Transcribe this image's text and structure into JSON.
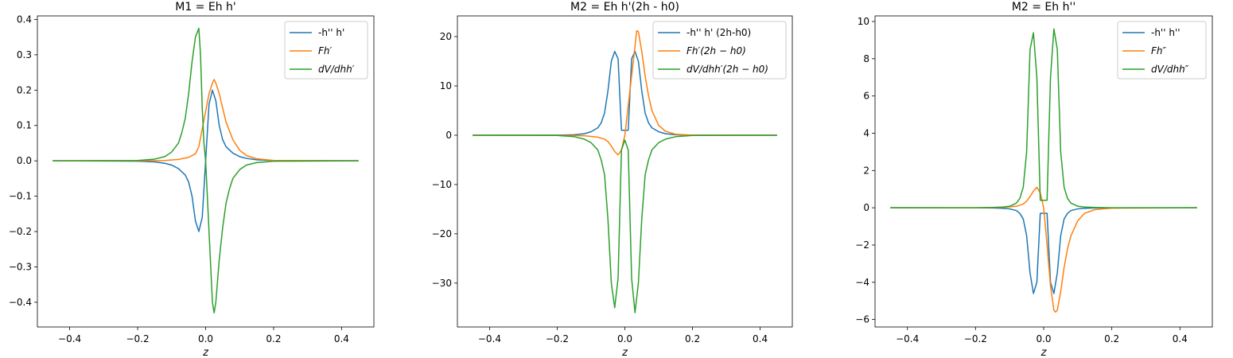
{
  "chart_data": [
    {
      "type": "line",
      "title": "M1 = Eh h'",
      "xlabel": "z",
      "ylabel": "",
      "xlim": [
        -0.495,
        0.495
      ],
      "ylim": [
        -0.47,
        0.41
      ],
      "xticks": [
        -0.4,
        -0.2,
        0.0,
        0.2,
        0.4
      ],
      "xtick_labels": [
        "−0.4",
        "−0.2",
        "0.0",
        "0.2",
        "0.4"
      ],
      "yticks": [
        -0.4,
        -0.3,
        -0.2,
        -0.1,
        0.0,
        0.1,
        0.2,
        0.3,
        0.4
      ],
      "ytick_labels": [
        "−0.4",
        "−0.3",
        "−0.2",
        "−0.1",
        "0.0",
        "0.1",
        "0.2",
        "0.3",
        "0.4"
      ],
      "grid": false,
      "legend": "top-right",
      "series": [
        {
          "name": "-h'' h'",
          "color": "#1f77b4",
          "x": [
            -0.45,
            -0.2,
            -0.15,
            -0.12,
            -0.1,
            -0.08,
            -0.06,
            -0.05,
            -0.04,
            -0.03,
            -0.02,
            -0.01,
            0.0,
            0.01,
            0.02,
            0.03,
            0.04,
            0.05,
            0.06,
            0.08,
            0.1,
            0.12,
            0.15,
            0.2,
            0.45
          ],
          "y": [
            0,
            -0.001,
            -0.003,
            -0.007,
            -0.012,
            -0.022,
            -0.04,
            -0.06,
            -0.1,
            -0.17,
            -0.2,
            -0.16,
            0.0,
            0.16,
            0.2,
            0.17,
            0.1,
            0.06,
            0.04,
            0.022,
            0.012,
            0.007,
            0.003,
            0.001,
            0
          ]
        },
        {
          "name": "Fh′",
          "color": "#ff7f0e",
          "x": [
            -0.45,
            -0.2,
            -0.12,
            -0.08,
            -0.05,
            -0.03,
            -0.02,
            -0.01,
            0.0,
            0.01,
            0.02,
            0.025,
            0.03,
            0.04,
            0.05,
            0.06,
            0.08,
            0.1,
            0.12,
            0.15,
            0.2,
            0.45
          ],
          "y": [
            0,
            0,
            0.001,
            0.004,
            0.01,
            0.02,
            0.04,
            0.09,
            0.14,
            0.19,
            0.22,
            0.23,
            0.22,
            0.19,
            0.15,
            0.11,
            0.06,
            0.03,
            0.015,
            0.006,
            0.001,
            0
          ]
        },
        {
          "name": "dV/dhh′",
          "color": "#2ca02c",
          "x": [
            -0.45,
            -0.2,
            -0.15,
            -0.12,
            -0.1,
            -0.08,
            -0.07,
            -0.06,
            -0.05,
            -0.04,
            -0.03,
            -0.02,
            -0.015,
            -0.01,
            -0.005,
            0.0,
            0.005,
            0.01,
            0.015,
            0.02,
            0.025,
            0.03,
            0.04,
            0.05,
            0.06,
            0.07,
            0.08,
            0.1,
            0.12,
            0.15,
            0.2,
            0.45
          ],
          "y": [
            0,
            0.001,
            0.005,
            0.012,
            0.025,
            0.05,
            0.08,
            0.12,
            0.19,
            0.28,
            0.35,
            0.375,
            0.3,
            0.15,
            0.05,
            0.0,
            -0.1,
            -0.2,
            -0.3,
            -0.4,
            -0.43,
            -0.4,
            -0.28,
            -0.19,
            -0.12,
            -0.08,
            -0.05,
            -0.025,
            -0.012,
            -0.005,
            -0.001,
            0
          ]
        }
      ]
    },
    {
      "type": "line",
      "title": "M2 = Eh h'(2h - h0)",
      "xlabel": "z",
      "ylabel": "",
      "xlim": [
        -0.495,
        0.495
      ],
      "ylim": [
        -38.9,
        24.2
      ],
      "xticks": [
        -0.4,
        -0.2,
        0.0,
        0.2,
        0.4
      ],
      "xtick_labels": [
        "−0.4",
        "−0.2",
        "0.0",
        "0.2",
        "0.4"
      ],
      "yticks": [
        -30,
        -20,
        -10,
        0,
        10,
        20
      ],
      "ytick_labels": [
        "−30",
        "−20",
        "−10",
        "0",
        "10",
        "20"
      ],
      "grid": false,
      "legend": "top-right",
      "series": [
        {
          "name": "-h'' h' (2h-h0)",
          "color": "#1f77b4",
          "x": [
            -0.45,
            -0.2,
            -0.15,
            -0.12,
            -0.1,
            -0.08,
            -0.07,
            -0.06,
            -0.05,
            -0.04,
            -0.03,
            -0.02,
            -0.01,
            0.0,
            0.01,
            0.02,
            0.03,
            0.04,
            0.05,
            0.06,
            0.07,
            0.08,
            0.1,
            0.12,
            0.15,
            0.2,
            0.45
          ],
          "y": [
            0,
            0.02,
            0.1,
            0.3,
            0.7,
            1.5,
            2.5,
            4.5,
            9,
            15,
            17,
            15.5,
            1,
            1,
            1,
            15.5,
            17,
            15,
            9,
            4.5,
            2.5,
            1.5,
            0.7,
            0.3,
            0.1,
            0.02,
            0
          ]
        },
        {
          "name": "Fh′(2h − h0)",
          "color": "#ff7f0e",
          "x": [
            -0.45,
            -0.2,
            -0.12,
            -0.08,
            -0.06,
            -0.05,
            -0.04,
            -0.03,
            -0.02,
            -0.01,
            0.0,
            0.01,
            0.02,
            0.03,
            0.035,
            0.04,
            0.05,
            0.06,
            0.07,
            0.08,
            0.1,
            0.12,
            0.15,
            0.2,
            0.45
          ],
          "y": [
            0,
            0,
            -0.1,
            -0.4,
            -0.8,
            -1.3,
            -2.2,
            -3.3,
            -4,
            -3,
            0,
            6,
            12,
            18,
            21.2,
            21,
            17,
            12,
            8,
            5,
            2,
            0.8,
            0.2,
            0.02,
            0
          ]
        },
        {
          "name": "dV/dhh′(2h − h0)",
          "color": "#2ca02c",
          "x": [
            -0.45,
            -0.2,
            -0.15,
            -0.12,
            -0.1,
            -0.08,
            -0.07,
            -0.06,
            -0.05,
            -0.04,
            -0.03,
            -0.02,
            -0.01,
            0.0,
            0.01,
            0.02,
            0.03,
            0.04,
            0.05,
            0.06,
            0.07,
            0.08,
            0.1,
            0.12,
            0.15,
            0.2,
            0.45
          ],
          "y": [
            0,
            -0.05,
            -0.3,
            -0.8,
            -1.5,
            -3,
            -5,
            -8,
            -17,
            -30,
            -35,
            -29,
            -3,
            -1,
            -3,
            -29,
            -36,
            -30,
            -17,
            -8,
            -5,
            -3,
            -1.5,
            -0.8,
            -0.3,
            -0.05,
            0
          ]
        }
      ]
    },
    {
      "type": "line",
      "title": "M2 = Eh h''",
      "xlabel": "z",
      "ylabel": "",
      "xlim": [
        -0.495,
        0.495
      ],
      "ylim": [
        -6.4,
        10.3
      ],
      "xticks": [
        -0.4,
        -0.2,
        0.0,
        0.2,
        0.4
      ],
      "xtick_labels": [
        "−0.4",
        "−0.2",
        "0.0",
        "0.2",
        "0.4"
      ],
      "yticks": [
        -6,
        -4,
        -2,
        0,
        2,
        4,
        6,
        8,
        10
      ],
      "ytick_labels": [
        "−6",
        "−4",
        "−2",
        "0",
        "2",
        "4",
        "6",
        "8",
        "10"
      ],
      "grid": false,
      "legend": "top-right",
      "series": [
        {
          "name": "-h'' h''",
          "color": "#1f77b4",
          "x": [
            -0.45,
            -0.2,
            -0.15,
            -0.12,
            -0.1,
            -0.08,
            -0.07,
            -0.06,
            -0.05,
            -0.04,
            -0.03,
            -0.02,
            -0.01,
            0.0,
            0.01,
            0.02,
            0.03,
            0.04,
            0.05,
            0.06,
            0.07,
            0.08,
            0.1,
            0.12,
            0.15,
            0.2,
            0.45
          ],
          "y": [
            0,
            -0.002,
            -0.01,
            -0.03,
            -0.06,
            -0.15,
            -0.3,
            -0.6,
            -1.5,
            -3.5,
            -4.6,
            -4,
            -0.3,
            -0.3,
            -0.3,
            -4,
            -4.6,
            -3.5,
            -1.5,
            -0.6,
            -0.3,
            -0.15,
            -0.06,
            -0.03,
            -0.01,
            -0.002,
            0
          ]
        },
        {
          "name": "Fh″",
          "color": "#ff7f0e",
          "x": [
            -0.45,
            -0.2,
            -0.12,
            -0.08,
            -0.06,
            -0.05,
            -0.04,
            -0.03,
            -0.02,
            -0.01,
            0.0,
            0.01,
            0.02,
            0.03,
            0.035,
            0.04,
            0.05,
            0.06,
            0.07,
            0.08,
            0.1,
            0.12,
            0.15,
            0.2,
            0.45
          ],
          "y": [
            0,
            0,
            0.02,
            0.08,
            0.2,
            0.35,
            0.6,
            0.9,
            1.1,
            0.8,
            0,
            -2,
            -4.2,
            -5.5,
            -5.6,
            -5.5,
            -4.5,
            -3.2,
            -2.2,
            -1.5,
            -0.7,
            -0.3,
            -0.1,
            -0.02,
            0
          ]
        },
        {
          "name": "dV/dhh″",
          "color": "#2ca02c",
          "x": [
            -0.45,
            -0.2,
            -0.15,
            -0.12,
            -0.1,
            -0.08,
            -0.07,
            -0.06,
            -0.05,
            -0.04,
            -0.03,
            -0.02,
            -0.01,
            0.0,
            0.01,
            0.02,
            0.03,
            0.04,
            0.05,
            0.06,
            0.07,
            0.08,
            0.1,
            0.12,
            0.15,
            0.2,
            0.45
          ],
          "y": [
            0,
            0.003,
            0.015,
            0.04,
            0.08,
            0.25,
            0.5,
            1.1,
            3,
            8.5,
            9.4,
            7,
            0.4,
            0.4,
            0.4,
            7,
            9.6,
            8.5,
            3,
            1.1,
            0.5,
            0.25,
            0.08,
            0.04,
            0.015,
            0.003,
            0
          ]
        }
      ]
    }
  ]
}
